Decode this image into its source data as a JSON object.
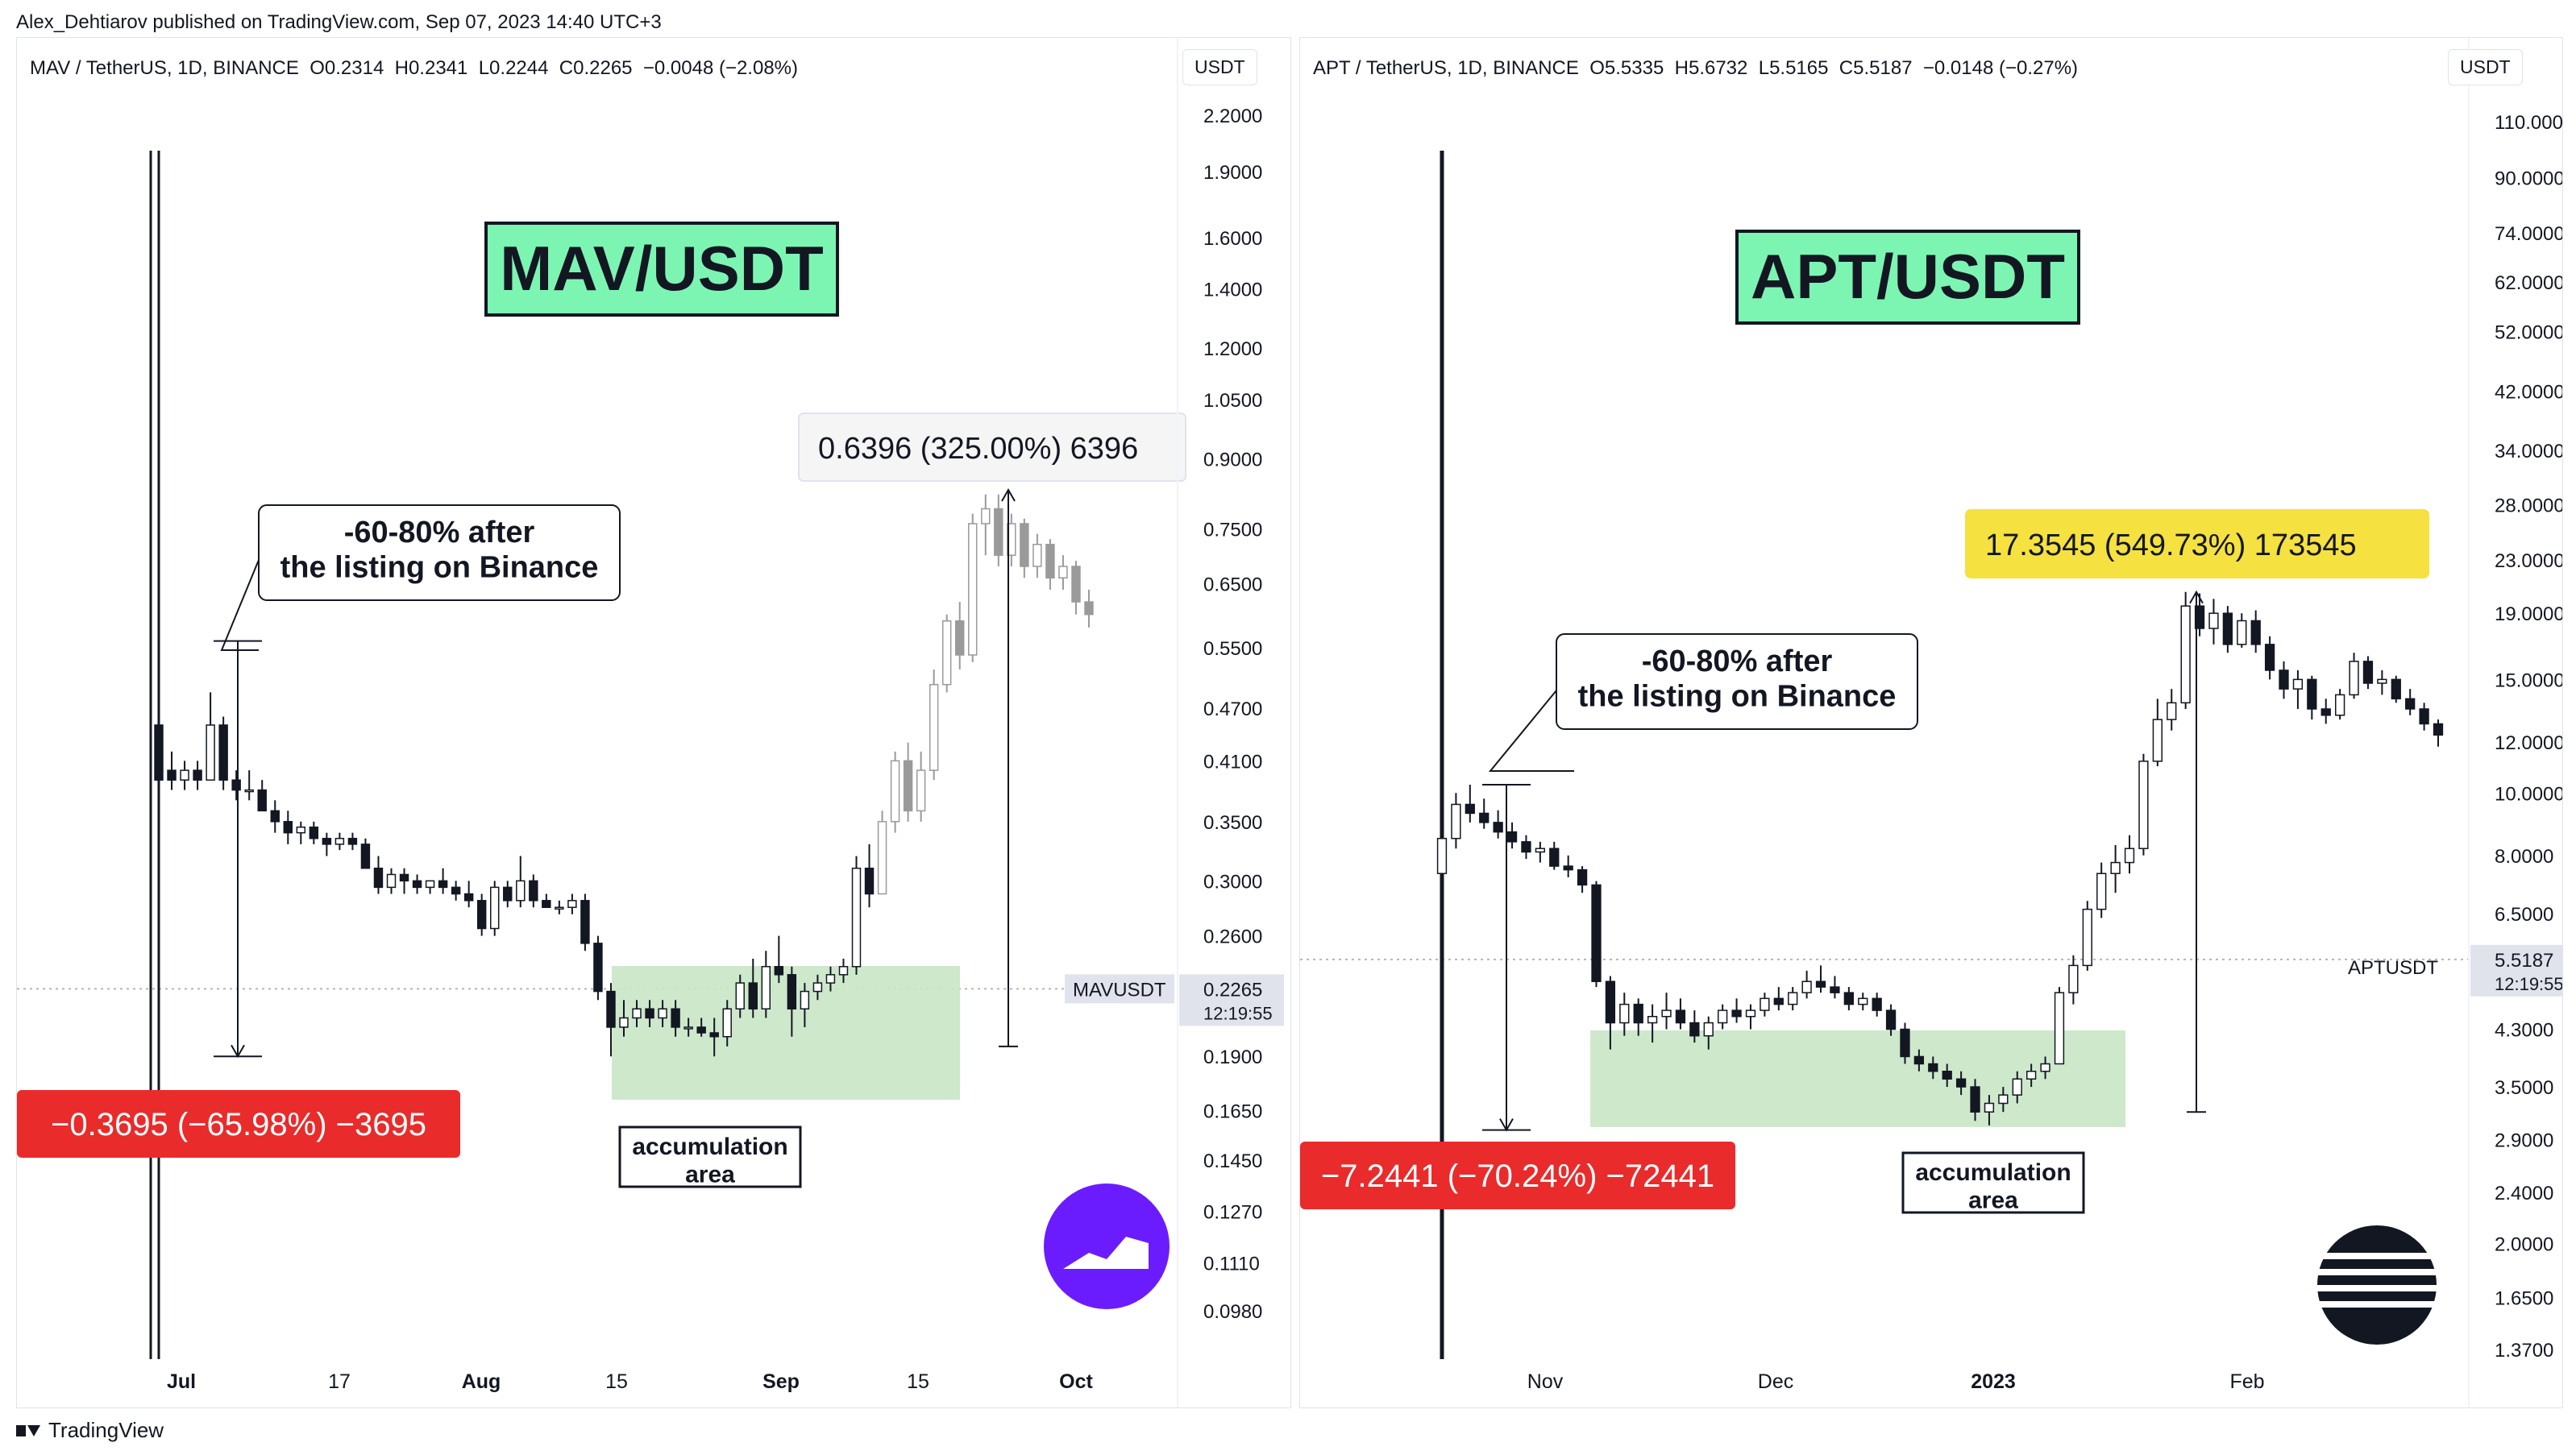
{
  "header": {
    "publisher_line": "Alex_Dehtiarov published on TradingView.com, Sep 07, 2023 14:40 UTC+3"
  },
  "footer": {
    "brand": "TradingView"
  },
  "chart_data": [
    {
      "type": "candlestick",
      "title": "MAV/USDT",
      "symbol_line": "MAV / TetherUS, 1D, BINANCE  O0.2314  H0.2341  L0.2244  C0.2265  −0.0048 (−2.08%)",
      "currency": "USDT",
      "y_scale": "log",
      "y_ticks": [
        "2.2000",
        "1.9000",
        "1.6000",
        "1.4000",
        "1.2000",
        "1.0500",
        "0.9000",
        "0.7500",
        "0.6500",
        "0.5500",
        "0.4700",
        "0.4100",
        "0.3500",
        "0.3000",
        "0.2600",
        "0.2265",
        "0.1900",
        "0.1650",
        "0.1450",
        "0.1270",
        "0.1110",
        "0.0980"
      ],
      "x_ticks": [
        "Jul",
        "17",
        "Aug",
        "15",
        "Sep",
        "15",
        "Oct"
      ],
      "bold_x_ticks": [
        "Jul",
        "Aug",
        "Sep",
        "Oct"
      ],
      "price_label": {
        "symbol": "MAVUSDT",
        "price": "0.2265",
        "countdown": "12:19:55"
      },
      "annotations": {
        "drop_callout": "-60-80% after\nthe listing on Binance",
        "drop_measure": "−0.3695 (−65.98%) −3695",
        "rise_measure": "0.6396 (325.00%) 6396",
        "accumulation_label": "accumulation\narea"
      },
      "ohlc": [
        {
          "o": 0.45,
          "h": 0.49,
          "l": 0.37,
          "c": 0.39
        },
        {
          "o": 0.4,
          "h": 0.42,
          "l": 0.38,
          "c": 0.39
        },
        {
          "o": 0.39,
          "h": 0.41,
          "l": 0.38,
          "c": 0.4
        },
        {
          "o": 0.4,
          "h": 0.41,
          "l": 0.38,
          "c": 0.39
        },
        {
          "o": 0.39,
          "h": 0.49,
          "l": 0.39,
          "c": 0.45
        },
        {
          "o": 0.45,
          "h": 0.46,
          "l": 0.38,
          "c": 0.39
        },
        {
          "o": 0.39,
          "h": 0.4,
          "l": 0.37,
          "c": 0.38
        },
        {
          "o": 0.38,
          "h": 0.4,
          "l": 0.37,
          "c": 0.38
        },
        {
          "o": 0.38,
          "h": 0.39,
          "l": 0.36,
          "c": 0.36
        },
        {
          "o": 0.36,
          "h": 0.37,
          "l": 0.34,
          "c": 0.35
        },
        {
          "o": 0.35,
          "h": 0.36,
          "l": 0.33,
          "c": 0.34
        },
        {
          "o": 0.34,
          "h": 0.35,
          "l": 0.33,
          "c": 0.345
        },
        {
          "o": 0.345,
          "h": 0.35,
          "l": 0.33,
          "c": 0.335
        },
        {
          "o": 0.335,
          "h": 0.34,
          "l": 0.32,
          "c": 0.33
        },
        {
          "o": 0.33,
          "h": 0.34,
          "l": 0.325,
          "c": 0.335
        },
        {
          "o": 0.335,
          "h": 0.34,
          "l": 0.325,
          "c": 0.33
        },
        {
          "o": 0.33,
          "h": 0.335,
          "l": 0.31,
          "c": 0.31
        },
        {
          "o": 0.31,
          "h": 0.32,
          "l": 0.29,
          "c": 0.295
        },
        {
          "o": 0.295,
          "h": 0.31,
          "l": 0.29,
          "c": 0.305
        },
        {
          "o": 0.305,
          "h": 0.31,
          "l": 0.29,
          "c": 0.3
        },
        {
          "o": 0.3,
          "h": 0.305,
          "l": 0.29,
          "c": 0.295
        },
        {
          "o": 0.295,
          "h": 0.3,
          "l": 0.29,
          "c": 0.3
        },
        {
          "o": 0.3,
          "h": 0.31,
          "l": 0.29,
          "c": 0.295
        },
        {
          "o": 0.295,
          "h": 0.3,
          "l": 0.285,
          "c": 0.29
        },
        {
          "o": 0.29,
          "h": 0.3,
          "l": 0.28,
          "c": 0.285
        },
        {
          "o": 0.285,
          "h": 0.29,
          "l": 0.26,
          "c": 0.265
        },
        {
          "o": 0.265,
          "h": 0.3,
          "l": 0.26,
          "c": 0.295
        },
        {
          "o": 0.295,
          "h": 0.3,
          "l": 0.28,
          "c": 0.285
        },
        {
          "o": 0.285,
          "h": 0.32,
          "l": 0.28,
          "c": 0.3
        },
        {
          "o": 0.3,
          "h": 0.305,
          "l": 0.28,
          "c": 0.285
        },
        {
          "o": 0.285,
          "h": 0.29,
          "l": 0.28,
          "c": 0.28
        },
        {
          "o": 0.28,
          "h": 0.285,
          "l": 0.275,
          "c": 0.28
        },
        {
          "o": 0.28,
          "h": 0.29,
          "l": 0.275,
          "c": 0.285
        },
        {
          "o": 0.285,
          "h": 0.29,
          "l": 0.25,
          "c": 0.255
        },
        {
          "o": 0.255,
          "h": 0.26,
          "l": 0.22,
          "c": 0.225
        },
        {
          "o": 0.225,
          "h": 0.23,
          "l": 0.19,
          "c": 0.205
        },
        {
          "o": 0.205,
          "h": 0.22,
          "l": 0.2,
          "c": 0.21
        },
        {
          "o": 0.21,
          "h": 0.22,
          "l": 0.205,
          "c": 0.215
        },
        {
          "o": 0.215,
          "h": 0.22,
          "l": 0.205,
          "c": 0.21
        },
        {
          "o": 0.21,
          "h": 0.22,
          "l": 0.205,
          "c": 0.215
        },
        {
          "o": 0.215,
          "h": 0.22,
          "l": 0.2,
          "c": 0.205
        },
        {
          "o": 0.205,
          "h": 0.21,
          "l": 0.2,
          "c": 0.205
        },
        {
          "o": 0.205,
          "h": 0.21,
          "l": 0.2,
          "c": 0.202
        },
        {
          "o": 0.202,
          "h": 0.21,
          "l": 0.19,
          "c": 0.2
        },
        {
          "o": 0.2,
          "h": 0.22,
          "l": 0.195,
          "c": 0.215
        },
        {
          "o": 0.215,
          "h": 0.235,
          "l": 0.21,
          "c": 0.23
        },
        {
          "o": 0.23,
          "h": 0.245,
          "l": 0.21,
          "c": 0.215
        },
        {
          "o": 0.215,
          "h": 0.25,
          "l": 0.21,
          "c": 0.24
        },
        {
          "o": 0.24,
          "h": 0.26,
          "l": 0.23,
          "c": 0.235
        },
        {
          "o": 0.235,
          "h": 0.24,
          "l": 0.2,
          "c": 0.215
        },
        {
          "o": 0.215,
          "h": 0.23,
          "l": 0.205,
          "c": 0.225
        },
        {
          "o": 0.225,
          "h": 0.235,
          "l": 0.22,
          "c": 0.23
        },
        {
          "o": 0.23,
          "h": 0.24,
          "l": 0.225,
          "c": 0.235
        },
        {
          "o": 0.235,
          "h": 0.245,
          "l": 0.23,
          "c": 0.24
        },
        {
          "o": 0.24,
          "h": 0.32,
          "l": 0.235,
          "c": 0.31
        },
        {
          "o": 0.31,
          "h": 0.33,
          "l": 0.28,
          "c": 0.29
        },
        {
          "o": 0.29,
          "h": 0.36,
          "l": 0.29,
          "c": 0.35
        },
        {
          "o": 0.35,
          "h": 0.42,
          "l": 0.34,
          "c": 0.41
        },
        {
          "o": 0.41,
          "h": 0.43,
          "l": 0.35,
          "c": 0.36
        },
        {
          "o": 0.36,
          "h": 0.42,
          "l": 0.35,
          "c": 0.4
        },
        {
          "o": 0.4,
          "h": 0.52,
          "l": 0.39,
          "c": 0.5
        },
        {
          "o": 0.5,
          "h": 0.6,
          "l": 0.49,
          "c": 0.59
        },
        {
          "o": 0.59,
          "h": 0.62,
          "l": 0.52,
          "c": 0.54
        },
        {
          "o": 0.54,
          "h": 0.78,
          "l": 0.53,
          "c": 0.76
        },
        {
          "o": 0.76,
          "h": 0.82,
          "l": 0.7,
          "c": 0.79
        },
        {
          "o": 0.79,
          "h": 0.82,
          "l": 0.68,
          "c": 0.7
        },
        {
          "o": 0.7,
          "h": 0.78,
          "l": 0.68,
          "c": 0.76
        },
        {
          "o": 0.76,
          "h": 0.77,
          "l": 0.66,
          "c": 0.68
        },
        {
          "o": 0.68,
          "h": 0.74,
          "l": 0.66,
          "c": 0.72
        },
        {
          "o": 0.72,
          "h": 0.73,
          "l": 0.64,
          "c": 0.66
        },
        {
          "o": 0.66,
          "h": 0.7,
          "l": 0.64,
          "c": 0.68
        },
        {
          "o": 0.68,
          "h": 0.69,
          "l": 0.6,
          "c": 0.62
        },
        {
          "o": 0.62,
          "h": 0.64,
          "l": 0.58,
          "c": 0.6
        }
      ]
    },
    {
      "type": "candlestick",
      "title": "APT/USDT",
      "symbol_line": "APT / TetherUS, 1D, BINANCE  O5.5335  H5.6732  L5.5165  C5.5187  −0.0148 (−0.27%)",
      "currency": "USDT",
      "y_scale": "log",
      "y_ticks": [
        "110.0000",
        "90.0000",
        "74.0000",
        "62.0000",
        "52.0000",
        "42.0000",
        "34.0000",
        "28.0000",
        "23.0000",
        "19.0000",
        "15.0000",
        "12.0000",
        "10.0000",
        "8.0000",
        "6.5000",
        "5.5187",
        "4.3000",
        "3.5000",
        "2.9000",
        "2.4000",
        "2.0000",
        "1.6500",
        "1.3700"
      ],
      "x_ticks": [
        "Nov",
        "Dec",
        "2023",
        "Feb"
      ],
      "bold_x_ticks": [
        "2023"
      ],
      "price_label": {
        "symbol": "APTUSDT",
        "price": "5.5187",
        "countdown": "12:19:55"
      },
      "annotations": {
        "drop_callout": "-60-80% after\nthe listing on Binance",
        "drop_measure": "−7.2441 (−70.24%) −72441",
        "rise_measure": "17.3545 (549.73%) 173545",
        "accumulation_label": "accumulation\narea"
      },
      "ohlc": [
        {
          "o": 7.5,
          "h": 8.8,
          "l": 7.2,
          "c": 8.5
        },
        {
          "o": 8.5,
          "h": 10.0,
          "l": 8.2,
          "c": 9.6
        },
        {
          "o": 9.6,
          "h": 10.3,
          "l": 9.0,
          "c": 9.3
        },
        {
          "o": 9.3,
          "h": 9.8,
          "l": 8.8,
          "c": 9.0
        },
        {
          "o": 9.0,
          "h": 9.4,
          "l": 8.5,
          "c": 8.7
        },
        {
          "o": 8.7,
          "h": 9.0,
          "l": 8.2,
          "c": 8.4
        },
        {
          "o": 8.4,
          "h": 8.6,
          "l": 7.9,
          "c": 8.1
        },
        {
          "o": 8.1,
          "h": 8.4,
          "l": 7.8,
          "c": 8.2
        },
        {
          "o": 8.2,
          "h": 8.4,
          "l": 7.6,
          "c": 7.7
        },
        {
          "o": 7.7,
          "h": 8.0,
          "l": 7.4,
          "c": 7.6
        },
        {
          "o": 7.6,
          "h": 7.7,
          "l": 7.0,
          "c": 7.2
        },
        {
          "o": 7.2,
          "h": 7.3,
          "l": 5.0,
          "c": 5.1
        },
        {
          "o": 5.1,
          "h": 5.2,
          "l": 4.0,
          "c": 4.4
        },
        {
          "o": 4.4,
          "h": 4.9,
          "l": 4.2,
          "c": 4.7
        },
        {
          "o": 4.7,
          "h": 4.8,
          "l": 4.2,
          "c": 4.4
        },
        {
          "o": 4.4,
          "h": 4.7,
          "l": 4.1,
          "c": 4.5
        },
        {
          "o": 4.5,
          "h": 4.9,
          "l": 4.3,
          "c": 4.6
        },
        {
          "o": 4.6,
          "h": 4.8,
          "l": 4.3,
          "c": 4.4
        },
        {
          "o": 4.4,
          "h": 4.6,
          "l": 4.1,
          "c": 4.2
        },
        {
          "o": 4.2,
          "h": 4.5,
          "l": 4.0,
          "c": 4.4
        },
        {
          "o": 4.4,
          "h": 4.7,
          "l": 4.3,
          "c": 4.6
        },
        {
          "o": 4.6,
          "h": 4.8,
          "l": 4.4,
          "c": 4.5
        },
        {
          "o": 4.5,
          "h": 4.7,
          "l": 4.3,
          "c": 4.6
        },
        {
          "o": 4.6,
          "h": 4.9,
          "l": 4.5,
          "c": 4.8
        },
        {
          "o": 4.8,
          "h": 5.0,
          "l": 4.6,
          "c": 4.7
        },
        {
          "o": 4.7,
          "h": 5.0,
          "l": 4.6,
          "c": 4.9
        },
        {
          "o": 4.9,
          "h": 5.3,
          "l": 4.8,
          "c": 5.1
        },
        {
          "o": 5.1,
          "h": 5.4,
          "l": 4.9,
          "c": 5.0
        },
        {
          "o": 5.0,
          "h": 5.2,
          "l": 4.8,
          "c": 4.9
        },
        {
          "o": 4.9,
          "h": 5.0,
          "l": 4.6,
          "c": 4.7
        },
        {
          "o": 4.7,
          "h": 4.9,
          "l": 4.6,
          "c": 4.8
        },
        {
          "o": 4.8,
          "h": 4.9,
          "l": 4.5,
          "c": 4.6
        },
        {
          "o": 4.6,
          "h": 4.7,
          "l": 4.2,
          "c": 4.3
        },
        {
          "o": 4.3,
          "h": 4.4,
          "l": 3.8,
          "c": 3.9
        },
        {
          "o": 3.9,
          "h": 4.0,
          "l": 3.7,
          "c": 3.8
        },
        {
          "o": 3.8,
          "h": 3.9,
          "l": 3.6,
          "c": 3.7
        },
        {
          "o": 3.7,
          "h": 3.8,
          "l": 3.5,
          "c": 3.6
        },
        {
          "o": 3.6,
          "h": 3.7,
          "l": 3.4,
          "c": 3.5
        },
        {
          "o": 3.5,
          "h": 3.6,
          "l": 3.1,
          "c": 3.2
        },
        {
          "o": 3.2,
          "h": 3.4,
          "l": 3.05,
          "c": 3.3
        },
        {
          "o": 3.3,
          "h": 3.5,
          "l": 3.2,
          "c": 3.4
        },
        {
          "o": 3.4,
          "h": 3.7,
          "l": 3.3,
          "c": 3.6
        },
        {
          "o": 3.6,
          "h": 3.8,
          "l": 3.5,
          "c": 3.7
        },
        {
          "o": 3.7,
          "h": 3.9,
          "l": 3.6,
          "c": 3.8
        },
        {
          "o": 3.8,
          "h": 5.0,
          "l": 3.8,
          "c": 4.9
        },
        {
          "o": 4.9,
          "h": 5.6,
          "l": 4.7,
          "c": 5.4
        },
        {
          "o": 5.4,
          "h": 6.8,
          "l": 5.3,
          "c": 6.6
        },
        {
          "o": 6.6,
          "h": 7.8,
          "l": 6.4,
          "c": 7.5
        },
        {
          "o": 7.5,
          "h": 8.3,
          "l": 7.0,
          "c": 7.8
        },
        {
          "o": 7.8,
          "h": 8.6,
          "l": 7.5,
          "c": 8.2
        },
        {
          "o": 8.2,
          "h": 11.5,
          "l": 8.0,
          "c": 11.2
        },
        {
          "o": 11.2,
          "h": 14.0,
          "l": 11.0,
          "c": 13.0
        },
        {
          "o": 13.0,
          "h": 14.5,
          "l": 12.5,
          "c": 13.8
        },
        {
          "o": 13.8,
          "h": 20.5,
          "l": 13.5,
          "c": 19.5
        },
        {
          "o": 19.5,
          "h": 20.4,
          "l": 17.5,
          "c": 18.0
        },
        {
          "o": 18.0,
          "h": 20.0,
          "l": 17.0,
          "c": 19.0
        },
        {
          "o": 19.0,
          "h": 19.5,
          "l": 16.5,
          "c": 17.0
        },
        {
          "o": 17.0,
          "h": 19.0,
          "l": 16.8,
          "c": 18.5
        },
        {
          "o": 18.5,
          "h": 19.2,
          "l": 16.5,
          "c": 17.0
        },
        {
          "o": 17.0,
          "h": 17.5,
          "l": 15.0,
          "c": 15.5
        },
        {
          "o": 15.5,
          "h": 16.0,
          "l": 14.0,
          "c": 14.5
        },
        {
          "o": 14.5,
          "h": 15.5,
          "l": 13.5,
          "c": 15.0
        },
        {
          "o": 15.0,
          "h": 15.2,
          "l": 13.0,
          "c": 13.5
        },
        {
          "o": 13.5,
          "h": 14.0,
          "l": 12.8,
          "c": 13.2
        },
        {
          "o": 13.2,
          "h": 14.5,
          "l": 13.0,
          "c": 14.2
        },
        {
          "o": 14.2,
          "h": 16.5,
          "l": 14.0,
          "c": 16.0
        },
        {
          "o": 16.0,
          "h": 16.3,
          "l": 14.5,
          "c": 14.8
        },
        {
          "o": 14.8,
          "h": 15.5,
          "l": 14.2,
          "c": 15.0
        },
        {
          "o": 15.0,
          "h": 15.2,
          "l": 13.8,
          "c": 14.0
        },
        {
          "o": 14.0,
          "h": 14.5,
          "l": 13.2,
          "c": 13.5
        },
        {
          "o": 13.5,
          "h": 13.8,
          "l": 12.5,
          "c": 12.8
        },
        {
          "o": 12.8,
          "h": 13.0,
          "l": 11.8,
          "c": 12.3
        }
      ]
    }
  ]
}
